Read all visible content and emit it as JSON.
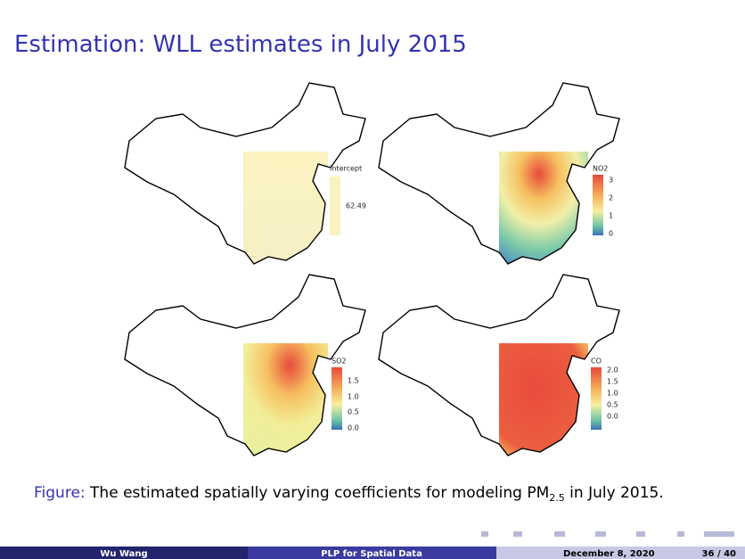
{
  "header": {
    "title": "Estimation: WLL estimates in July 2015"
  },
  "panels": [
    {
      "legend_title": "Intercept",
      "legend_ticks": [
        "62.49"
      ]
    },
    {
      "legend_title": "NO2",
      "legend_ticks": [
        "3",
        "2",
        "1",
        "0"
      ]
    },
    {
      "legend_title": "SO2",
      "legend_ticks": [
        "1.5",
        "1.0",
        "0.5",
        "0.0"
      ]
    },
    {
      "legend_title": "CO",
      "legend_ticks": [
        "2.0",
        "1.5",
        "1.0",
        "0.5",
        "0.0"
      ]
    }
  ],
  "caption": {
    "label": "Figure:",
    "text_before": "The estimated spatially varying coefficients for modeling PM",
    "subscript": "2.5",
    "text_after": " in July 2015."
  },
  "footer": {
    "author": "Wu Wang",
    "title": "PLP for Spatial Data",
    "date": "December 8, 2020",
    "page": "36 / 40"
  }
}
